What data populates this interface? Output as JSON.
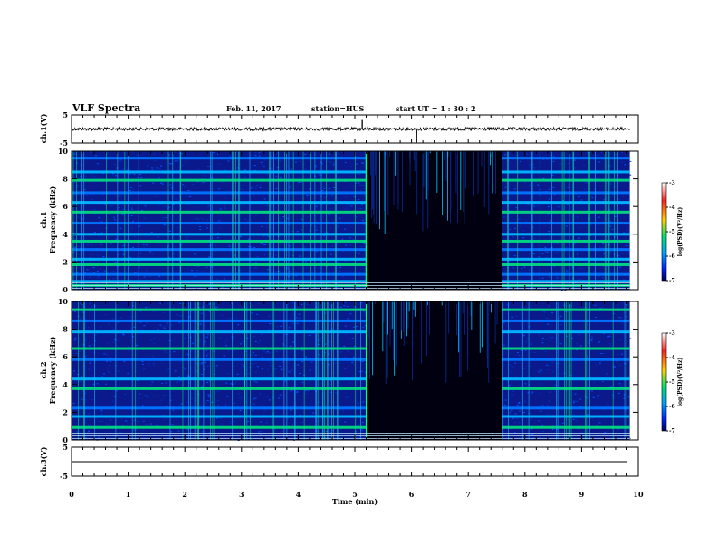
{
  "header": {
    "title": "VLF Spectra",
    "date": "Feb. 11, 2017",
    "station": "station=HUS",
    "start": "start UT =  1 : 30 : 2"
  },
  "colorbar": {
    "label": "log(PSD)(V²/Hz)",
    "ticks": [
      "-3",
      "-4",
      "-5",
      "-6",
      "-7"
    ],
    "colors": [
      "#ffffff",
      "#ff2020",
      "#ffd000",
      "#00e070",
      "#00a0ff",
      "#0020ff",
      "#000060"
    ]
  },
  "chart_data": [
    {
      "type": "line",
      "panel": "ch1-waveform",
      "ylabel": "ch.1(V)",
      "ylim": [
        -5,
        5
      ],
      "yticks": [
        "5",
        "-5"
      ],
      "baseline": 0,
      "spikes": [
        {
          "x": 5.13,
          "y": 3.2
        },
        {
          "x": 6.09,
          "y": -4.8
        }
      ]
    },
    {
      "type": "heatmap",
      "panel": "ch1-spectrogram",
      "ylabel": "ch.1\nFrequency (kHz)",
      "xlim": [
        0,
        10
      ],
      "ylim": [
        0,
        10
      ],
      "yticks": [
        "10",
        "8",
        "6",
        "4",
        "2",
        "0"
      ],
      "quiet_interval_min": [
        5.2,
        7.6
      ],
      "data_end_min": 9.85,
      "bands_khz": [
        0.3,
        0.6,
        1.1,
        1.8,
        2.2,
        2.9,
        3.5,
        4.0,
        4.8,
        5.6,
        6.3,
        7.0,
        7.9,
        8.5,
        9.5
      ]
    },
    {
      "type": "heatmap",
      "panel": "ch2-spectrogram",
      "ylabel": "ch.2\nFrequency (kHz)",
      "xlim": [
        0,
        10
      ],
      "ylim": [
        0,
        10
      ],
      "yticks": [
        "10",
        "8",
        "6",
        "4",
        "2",
        "0"
      ],
      "quiet_interval_min": [
        5.2,
        7.6
      ],
      "data_end_min": 9.85,
      "bands_khz": [
        0.9,
        1.7,
        2.3,
        3.7,
        4.4,
        5.8,
        6.6,
        7.8,
        8.6,
        9.4
      ]
    },
    {
      "type": "line",
      "panel": "ch3-waveform",
      "ylabel": "ch.3(V)",
      "ylim": [
        -5,
        5
      ],
      "yticks": [
        "5",
        "-5"
      ],
      "baseline": 0,
      "spikes": []
    }
  ],
  "xaxis": {
    "label": "Time (min)",
    "ticks": [
      "0",
      "1",
      "2",
      "3",
      "4",
      "5",
      "6",
      "7",
      "8",
      "9",
      "10"
    ]
  }
}
